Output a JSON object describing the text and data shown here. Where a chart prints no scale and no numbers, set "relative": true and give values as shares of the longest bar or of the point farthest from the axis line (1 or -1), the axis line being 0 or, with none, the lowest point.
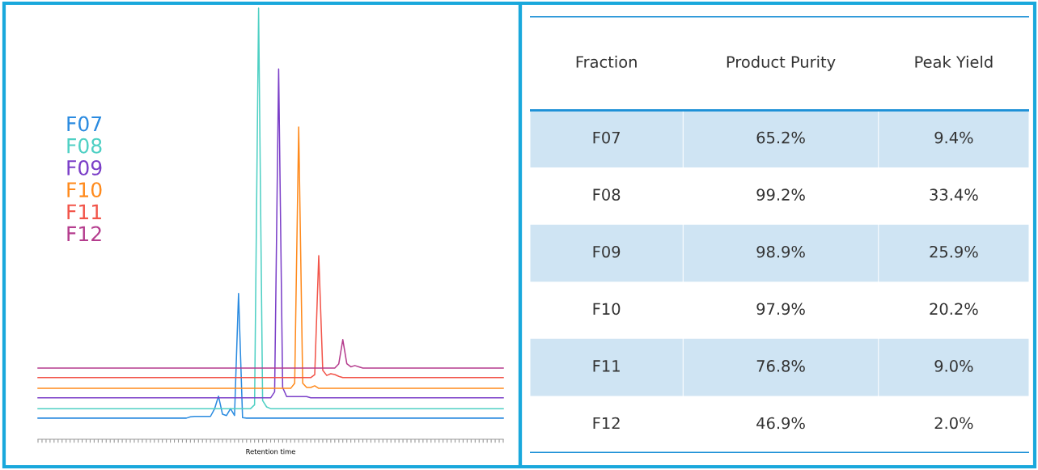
{
  "chart_data": [
    {
      "type": "line",
      "relative": true,
      "xlabel": "Retention time",
      "legend": "left",
      "categories": [
        null,
        null,
        null,
        null,
        null,
        null,
        null,
        null,
        null,
        null,
        null,
        null,
        null,
        null,
        null,
        null,
        null,
        null,
        null,
        null,
        null,
        null,
        null,
        null,
        null,
        null,
        null,
        null,
        null,
        null,
        null,
        null,
        null,
        null,
        null,
        null,
        null,
        null,
        null,
        null,
        null,
        null,
        null,
        null,
        null,
        null,
        null,
        null,
        null,
        null,
        null,
        null,
        null,
        null,
        null,
        null,
        null,
        null,
        null,
        null,
        null,
        null,
        null,
        null,
        null,
        null,
        null,
        null,
        null,
        null,
        null,
        null,
        null,
        null,
        null,
        null,
        null,
        null,
        null,
        null,
        null,
        null,
        null,
        null,
        null,
        null,
        null,
        null,
        null,
        null,
        null,
        null,
        null,
        null,
        null,
        null,
        null,
        null,
        null,
        null,
        null,
        null,
        null,
        null,
        null,
        null,
        null,
        null,
        null,
        null,
        null,
        null,
        null,
        null,
        null,
        null,
        null
      ],
      "series": [
        {
          "name": "F07",
          "color": "#2b8be0",
          "values": [
            0.049,
            0.049,
            0.049,
            0.049,
            0.049,
            0.049,
            0.049,
            0.049,
            0.049,
            0.049,
            0.049,
            0.049,
            0.049,
            0.049,
            0.049,
            0.049,
            0.049,
            0.049,
            0.049,
            0.049,
            0.049,
            0.049,
            0.049,
            0.049,
            0.049,
            0.049,
            0.049,
            0.049,
            0.049,
            0.049,
            0.049,
            0.049,
            0.049,
            0.049,
            0.049,
            0.049,
            0.049,
            0.049,
            0.052,
            0.053,
            0.053,
            0.053,
            0.053,
            0.053,
            0.07,
            0.1,
            0.058,
            0.055,
            0.071,
            0.055,
            0.338,
            0.05,
            0.049,
            0.049,
            0.049,
            0.049,
            0.049,
            0.049,
            0.049,
            0.049,
            0.049,
            0.049,
            0.049,
            0.049,
            0.049,
            0.049,
            0.049,
            0.049,
            0.049,
            0.049,
            0.049,
            0.049,
            0.049,
            0.049,
            0.049,
            0.049,
            0.049,
            0.049,
            0.049,
            0.049,
            0.049,
            0.049,
            0.049,
            0.049,
            0.049,
            0.049,
            0.049,
            0.049,
            0.049,
            0.049,
            0.049,
            0.049,
            0.049,
            0.049,
            0.049,
            0.049,
            0.049,
            0.049,
            0.049,
            0.049,
            0.049,
            0.049,
            0.049,
            0.049,
            0.049,
            0.049,
            0.049,
            0.049,
            0.049,
            0.049,
            0.049,
            0.049,
            0.049,
            0.049,
            0.049,
            0.049,
            0.049
          ]
        },
        {
          "name": "F08",
          "color": "#4fd0c4",
          "values": [
            0.071,
            0.071,
            0.071,
            0.071,
            0.071,
            0.071,
            0.071,
            0.071,
            0.071,
            0.071,
            0.071,
            0.071,
            0.071,
            0.071,
            0.071,
            0.071,
            0.071,
            0.071,
            0.071,
            0.071,
            0.071,
            0.071,
            0.071,
            0.071,
            0.071,
            0.071,
            0.071,
            0.071,
            0.071,
            0.071,
            0.071,
            0.071,
            0.071,
            0.071,
            0.071,
            0.071,
            0.071,
            0.071,
            0.071,
            0.071,
            0.071,
            0.071,
            0.071,
            0.071,
            0.071,
            0.071,
            0.071,
            0.071,
            0.071,
            0.071,
            0.071,
            0.071,
            0.071,
            0.071,
            0.08,
            1.0,
            0.09,
            0.075,
            0.071,
            0.071,
            0.071,
            0.071,
            0.071,
            0.071,
            0.071,
            0.071,
            0.071,
            0.071,
            0.071,
            0.071,
            0.071,
            0.071,
            0.071,
            0.071,
            0.071,
            0.071,
            0.071,
            0.071,
            0.071,
            0.071,
            0.071,
            0.071,
            0.071,
            0.071,
            0.071,
            0.071,
            0.071,
            0.071,
            0.071,
            0.071,
            0.071,
            0.071,
            0.071,
            0.071,
            0.071,
            0.071,
            0.071,
            0.071,
            0.071,
            0.071,
            0.071,
            0.071,
            0.071,
            0.071,
            0.071,
            0.071,
            0.071,
            0.071,
            0.071,
            0.071,
            0.071,
            0.071,
            0.071,
            0.071,
            0.071,
            0.071,
            0.071
          ]
        },
        {
          "name": "F09",
          "color": "#7b3fc8",
          "values": [
            0.096,
            0.096,
            0.096,
            0.096,
            0.096,
            0.096,
            0.096,
            0.096,
            0.096,
            0.096,
            0.096,
            0.096,
            0.096,
            0.096,
            0.096,
            0.096,
            0.096,
            0.096,
            0.096,
            0.096,
            0.096,
            0.096,
            0.096,
            0.096,
            0.096,
            0.096,
            0.096,
            0.096,
            0.096,
            0.096,
            0.096,
            0.096,
            0.096,
            0.096,
            0.096,
            0.096,
            0.096,
            0.096,
            0.096,
            0.096,
            0.096,
            0.096,
            0.096,
            0.096,
            0.096,
            0.096,
            0.096,
            0.096,
            0.096,
            0.096,
            0.096,
            0.096,
            0.096,
            0.096,
            0.096,
            0.096,
            0.096,
            0.096,
            0.096,
            0.11,
            0.859,
            0.12,
            0.099,
            0.099,
            0.099,
            0.099,
            0.099,
            0.099,
            0.096,
            0.096,
            0.096,
            0.096,
            0.096,
            0.096,
            0.096,
            0.096,
            0.096,
            0.096,
            0.096,
            0.096,
            0.096,
            0.096,
            0.096,
            0.096,
            0.096,
            0.096,
            0.096,
            0.096,
            0.096,
            0.096,
            0.096,
            0.096,
            0.096,
            0.096,
            0.096,
            0.096,
            0.096,
            0.096,
            0.096,
            0.096,
            0.096,
            0.096,
            0.096,
            0.096,
            0.096,
            0.096,
            0.096,
            0.096,
            0.096,
            0.096,
            0.096,
            0.096,
            0.096,
            0.096,
            0.096,
            0.096,
            0.096
          ]
        },
        {
          "name": "F10",
          "color": "#ff8a1c",
          "values": [
            0.118,
            0.118,
            0.118,
            0.118,
            0.118,
            0.118,
            0.118,
            0.118,
            0.118,
            0.118,
            0.118,
            0.118,
            0.118,
            0.118,
            0.118,
            0.118,
            0.118,
            0.118,
            0.118,
            0.118,
            0.118,
            0.118,
            0.118,
            0.118,
            0.118,
            0.118,
            0.118,
            0.118,
            0.118,
            0.118,
            0.118,
            0.118,
            0.118,
            0.118,
            0.118,
            0.118,
            0.118,
            0.118,
            0.118,
            0.118,
            0.118,
            0.118,
            0.118,
            0.118,
            0.118,
            0.118,
            0.118,
            0.118,
            0.118,
            0.118,
            0.118,
            0.118,
            0.118,
            0.118,
            0.118,
            0.118,
            0.118,
            0.118,
            0.118,
            0.118,
            0.118,
            0.118,
            0.118,
            0.118,
            0.13,
            0.724,
            0.13,
            0.12,
            0.12,
            0.124,
            0.118,
            0.118,
            0.118,
            0.118,
            0.118,
            0.118,
            0.118,
            0.118,
            0.118,
            0.118,
            0.118,
            0.118,
            0.118,
            0.118,
            0.118,
            0.118,
            0.118,
            0.118,
            0.118,
            0.118,
            0.118,
            0.118,
            0.118,
            0.118,
            0.118,
            0.118,
            0.118,
            0.118,
            0.118,
            0.118,
            0.118,
            0.118,
            0.118,
            0.118,
            0.118,
            0.118,
            0.118,
            0.118,
            0.118,
            0.118,
            0.118,
            0.118,
            0.118,
            0.118,
            0.118,
            0.118,
            0.118
          ]
        },
        {
          "name": "F11",
          "color": "#f2554a",
          "values": [
            0.143,
            0.143,
            0.143,
            0.143,
            0.143,
            0.143,
            0.143,
            0.143,
            0.143,
            0.143,
            0.143,
            0.143,
            0.143,
            0.143,
            0.143,
            0.143,
            0.143,
            0.143,
            0.143,
            0.143,
            0.143,
            0.143,
            0.143,
            0.143,
            0.143,
            0.143,
            0.143,
            0.143,
            0.143,
            0.143,
            0.143,
            0.143,
            0.143,
            0.143,
            0.143,
            0.143,
            0.143,
            0.143,
            0.143,
            0.143,
            0.143,
            0.143,
            0.143,
            0.143,
            0.143,
            0.143,
            0.143,
            0.143,
            0.143,
            0.143,
            0.143,
            0.143,
            0.143,
            0.143,
            0.143,
            0.143,
            0.143,
            0.143,
            0.143,
            0.143,
            0.143,
            0.143,
            0.143,
            0.143,
            0.143,
            0.143,
            0.143,
            0.143,
            0.143,
            0.15,
            0.426,
            0.16,
            0.148,
            0.152,
            0.15,
            0.146,
            0.143,
            0.143,
            0.143,
            0.143,
            0.143,
            0.143,
            0.143,
            0.143,
            0.143,
            0.143,
            0.143,
            0.143,
            0.143,
            0.143,
            0.143,
            0.143,
            0.143,
            0.143,
            0.143,
            0.143,
            0.143,
            0.143,
            0.143,
            0.143,
            0.143,
            0.143,
            0.143,
            0.143,
            0.143,
            0.143,
            0.143,
            0.143,
            0.143,
            0.143,
            0.143,
            0.143,
            0.143,
            0.143,
            0.143,
            0.143,
            0.143
          ]
        },
        {
          "name": "F12",
          "color": "#b53d8e",
          "values": [
            0.165,
            0.165,
            0.165,
            0.165,
            0.165,
            0.165,
            0.165,
            0.165,
            0.165,
            0.165,
            0.165,
            0.165,
            0.165,
            0.165,
            0.165,
            0.165,
            0.165,
            0.165,
            0.165,
            0.165,
            0.165,
            0.165,
            0.165,
            0.165,
            0.165,
            0.165,
            0.165,
            0.165,
            0.165,
            0.165,
            0.165,
            0.165,
            0.165,
            0.165,
            0.165,
            0.165,
            0.165,
            0.165,
            0.165,
            0.165,
            0.165,
            0.165,
            0.165,
            0.165,
            0.165,
            0.165,
            0.165,
            0.165,
            0.165,
            0.165,
            0.165,
            0.165,
            0.165,
            0.165,
            0.165,
            0.165,
            0.165,
            0.165,
            0.165,
            0.165,
            0.165,
            0.165,
            0.165,
            0.165,
            0.165,
            0.165,
            0.165,
            0.165,
            0.165,
            0.165,
            0.165,
            0.165,
            0.165,
            0.165,
            0.165,
            0.175,
            0.231,
            0.175,
            0.168,
            0.171,
            0.168,
            0.165,
            0.165,
            0.165,
            0.165,
            0.165,
            0.165,
            0.165,
            0.165,
            0.165,
            0.165,
            0.165,
            0.165,
            0.165,
            0.165,
            0.165,
            0.165,
            0.165,
            0.165,
            0.165,
            0.165,
            0.165,
            0.165,
            0.165,
            0.165,
            0.165,
            0.165,
            0.165,
            0.165,
            0.165,
            0.165,
            0.165,
            0.165,
            0.165,
            0.165,
            0.165,
            0.165
          ]
        }
      ]
    },
    {
      "type": "other",
      "xlabel": "Fraction",
      "categories": [
        "F07",
        "F08",
        "F09",
        "F10",
        "F11",
        "F12"
      ],
      "series": [
        {
          "name": "Product Purity",
          "values": [
            65.2,
            99.2,
            98.9,
            97.9,
            76.8,
            46.9
          ],
          "value_labels": [
            "65.2%",
            "99.2%",
            "98.9%",
            "97.9%",
            "76.8%",
            "46.9%"
          ]
        },
        {
          "name": "Peak Yield",
          "values": [
            9.4,
            33.4,
            25.9,
            20.2,
            9.0,
            2.0
          ],
          "value_labels": [
            "9.4%",
            "33.4%",
            "25.9%",
            "20.2%",
            "9.0%",
            "2.0%"
          ]
        }
      ]
    }
  ]
}
